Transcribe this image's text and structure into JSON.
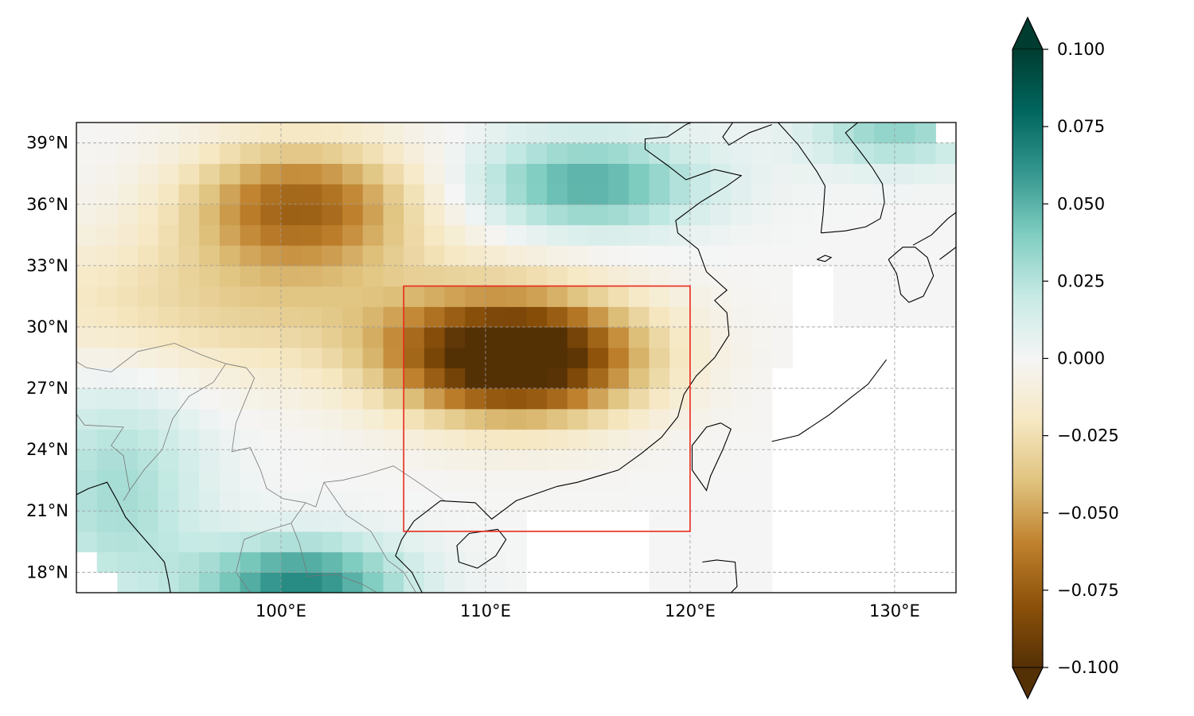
{
  "chart_data": {
    "type": "heatmap",
    "projection": "PlateCarree",
    "title": "",
    "xlabel": "",
    "ylabel": "",
    "xlim": [
      90,
      133
    ],
    "ylim": [
      17,
      40
    ],
    "grid": true,
    "grid_style": "dashed",
    "x_ticks": [
      {
        "value": 100,
        "label": "100°E"
      },
      {
        "value": 110,
        "label": "110°E"
      },
      {
        "value": 120,
        "label": "120°E"
      },
      {
        "value": 130,
        "label": "130°E"
      }
    ],
    "y_ticks": [
      {
        "value": 18,
        "label": "18°N"
      },
      {
        "value": 21,
        "label": "21°N"
      },
      {
        "value": 24,
        "label": "24°N"
      },
      {
        "value": 27,
        "label": "27°N"
      },
      {
        "value": 30,
        "label": "30°N"
      },
      {
        "value": 33,
        "label": "33°N"
      },
      {
        "value": 36,
        "label": "36°N"
      },
      {
        "value": 39,
        "label": "39°N"
      }
    ],
    "grid_resolution_deg": 1,
    "field_features": [
      {
        "kind": "negative_anomaly",
        "lon": 111.5,
        "lat": 28.5,
        "sigma_lon": 4.2,
        "sigma_lat": 2.1,
        "amplitude": -0.12
      },
      {
        "kind": "negative_anomaly",
        "lon": 101,
        "lat": 36,
        "sigma_lon": 4,
        "sigma_lat": 2.2,
        "amplitude": -0.07
      },
      {
        "kind": "negative_band",
        "lon": 98,
        "lat": 31,
        "sigma_lon": 9,
        "sigma_lat": 2.5,
        "amplitude": -0.03
      },
      {
        "kind": "positive_anomaly",
        "lon": 115,
        "lat": 37,
        "sigma_lon": 4,
        "sigma_lat": 1.6,
        "amplitude": 0.052
      },
      {
        "kind": "positive_anomaly",
        "lon": 130,
        "lat": 39.5,
        "sigma_lon": 3,
        "sigma_lat": 1.2,
        "amplitude": 0.035
      },
      {
        "kind": "positive_anomaly",
        "lon": 101,
        "lat": 17.5,
        "sigma_lon": 3.5,
        "sigma_lat": 1.5,
        "amplitude": 0.065
      },
      {
        "kind": "positive_anomaly",
        "lon": 92,
        "lat": 22,
        "sigma_lon": 3,
        "sigma_lat": 4,
        "amplitude": 0.03
      }
    ],
    "missing_regions": [
      {
        "lon": [
          124,
          133
        ],
        "lat": [
          17,
          28
        ]
      },
      {
        "lon": [
          125,
          127
        ],
        "lat": [
          28,
          33
        ]
      },
      {
        "lon": [
          127,
          133
        ],
        "lat": [
          28,
          30
        ]
      },
      {
        "lon": [
          112,
          118
        ],
        "lat": [
          17,
          21
        ]
      },
      {
        "lon": [
          90,
          91
        ],
        "lat": [
          17,
          19
        ]
      },
      {
        "lon": [
          91,
          92
        ],
        "lat": [
          17,
          18
        ]
      },
      {
        "lon": [
          132,
          133
        ],
        "lat": [
          39,
          40
        ]
      }
    ],
    "region_box": {
      "lon": [
        106,
        120
      ],
      "lat": [
        20,
        32
      ],
      "color": "#e8291c"
    },
    "colorbar": {
      "cmap": "BrBG",
      "vmin": -0.1,
      "vmax": 0.1,
      "extend": "both",
      "ticks": [
        {
          "value": 0.1,
          "label": "0.100"
        },
        {
          "value": 0.075,
          "label": "0.075"
        },
        {
          "value": 0.05,
          "label": "0.050"
        },
        {
          "value": 0.025,
          "label": "0.025"
        },
        {
          "value": 0,
          "label": "0.000"
        },
        {
          "value": -0.025,
          "label": "−0.025"
        },
        {
          "value": -0.05,
          "label": "−0.050"
        },
        {
          "value": -0.075,
          "label": "−0.075"
        },
        {
          "value": -0.1,
          "label": "−0.100"
        }
      ],
      "colors": [
        "#543005",
        "#8c510a",
        "#bf812d",
        "#dfc27d",
        "#f6e8c3",
        "#f5f5f5",
        "#c7eae5",
        "#80cdc1",
        "#35978f",
        "#01665e",
        "#003c30"
      ]
    },
    "coastlines": [
      {
        "name": "china_coast",
        "points": [
          [
            106.5,
            20.5
          ],
          [
            107.8,
            21.5
          ],
          [
            109.5,
            21.4
          ],
          [
            110.3,
            20.6
          ],
          [
            111.5,
            21.5
          ],
          [
            113.5,
            22.2
          ],
          [
            114.5,
            22.4
          ],
          [
            116.5,
            23.0
          ],
          [
            117.6,
            23.8
          ],
          [
            118.6,
            24.6
          ],
          [
            119.4,
            25.6
          ],
          [
            119.7,
            26.7
          ],
          [
            120.3,
            27.6
          ],
          [
            121.2,
            28.5
          ],
          [
            121.9,
            29.6
          ],
          [
            121.8,
            30.7
          ],
          [
            121.2,
            31.3
          ],
          [
            121.8,
            31.8
          ],
          [
            120.8,
            32.7
          ],
          [
            120.4,
            33.8
          ],
          [
            119.4,
            34.6
          ],
          [
            119.3,
            35.2
          ],
          [
            120.5,
            36.1
          ],
          [
            121.8,
            36.9
          ],
          [
            122.5,
            37.4
          ],
          [
            121.2,
            37.7
          ],
          [
            119.8,
            37.2
          ],
          [
            118.9,
            37.9
          ],
          [
            117.8,
            38.7
          ],
          [
            117.8,
            39.2
          ],
          [
            118.9,
            39.3
          ],
          [
            119.8,
            39.9
          ],
          [
            121.0,
            40.4
          ]
        ]
      },
      {
        "name": "liaodong",
        "points": [
          [
            122.3,
            40.3
          ],
          [
            121.6,
            39.3
          ],
          [
            121.9,
            38.9
          ],
          [
            122.9,
            39.5
          ],
          [
            124.0,
            39.9
          ]
        ]
      },
      {
        "name": "korea_west",
        "points": [
          [
            124.3,
            40.0
          ],
          [
            125.3,
            38.9
          ],
          [
            126.2,
            37.6
          ],
          [
            126.6,
            36.9
          ],
          [
            126.5,
            35.5
          ],
          [
            126.4,
            34.6
          ]
        ]
      },
      {
        "name": "korea_south_east",
        "points": [
          [
            126.4,
            34.6
          ],
          [
            127.6,
            34.7
          ],
          [
            128.6,
            34.9
          ],
          [
            129.3,
            35.3
          ],
          [
            129.5,
            36.1
          ],
          [
            129.4,
            37.0
          ],
          [
            128.9,
            37.8
          ],
          [
            128.3,
            38.6
          ],
          [
            127.6,
            39.5
          ],
          [
            128.2,
            40.0
          ]
        ]
      },
      {
        "name": "vietnam_coast",
        "points": [
          [
            106.5,
            20.5
          ],
          [
            105.9,
            19.6
          ],
          [
            105.6,
            18.8
          ],
          [
            106.4,
            18.0
          ],
          [
            106.9,
            17.0
          ]
        ]
      },
      {
        "name": "myanmar_coast",
        "points": [
          [
            90.0,
            21.8
          ],
          [
            90.6,
            22.1
          ],
          [
            91.5,
            22.4
          ],
          [
            92.0,
            21.5
          ],
          [
            92.4,
            20.7
          ],
          [
            93.0,
            20.0
          ],
          [
            93.7,
            19.2
          ],
          [
            94.3,
            18.5
          ],
          [
            94.5,
            17.6
          ],
          [
            94.6,
            17.0
          ]
        ]
      },
      {
        "name": "japan_kyushu",
        "points": [
          [
            129.7,
            33.3
          ],
          [
            130.4,
            33.9
          ],
          [
            131.0,
            33.9
          ],
          [
            131.6,
            33.4
          ],
          [
            131.9,
            32.5
          ],
          [
            131.4,
            31.5
          ],
          [
            130.7,
            31.2
          ],
          [
            130.3,
            31.6
          ],
          [
            130.1,
            32.6
          ],
          [
            129.7,
            33.3
          ]
        ]
      },
      {
        "name": "japan_honshu_west",
        "points": [
          [
            130.9,
            34.0
          ],
          [
            131.8,
            34.5
          ],
          [
            132.6,
            35.3
          ],
          [
            133.0,
            35.6
          ]
        ]
      },
      {
        "name": "japan_shikoku_edge",
        "points": [
          [
            132.2,
            33.3
          ],
          [
            132.6,
            33.6
          ],
          [
            133.0,
            33.9
          ]
        ]
      },
      {
        "name": "ryukyu_chain",
        "points": [
          [
            129.6,
            28.4
          ],
          [
            128.7,
            27.2
          ],
          [
            127.8,
            26.5
          ],
          [
            126.8,
            25.7
          ],
          [
            125.3,
            24.7
          ],
          [
            124.0,
            24.4
          ]
        ]
      }
    ],
    "islands": [
      {
        "name": "taiwan",
        "points": [
          [
            121.5,
            25.3
          ],
          [
            122.0,
            25.0
          ],
          [
            121.6,
            24.0
          ],
          [
            121.0,
            22.7
          ],
          [
            120.8,
            22.0
          ],
          [
            120.1,
            23.0
          ],
          [
            120.1,
            24.2
          ],
          [
            120.8,
            25.1
          ],
          [
            121.5,
            25.3
          ]
        ]
      },
      {
        "name": "hainan",
        "points": [
          [
            110.6,
            20.1
          ],
          [
            111.0,
            19.6
          ],
          [
            110.5,
            18.8
          ],
          [
            109.6,
            18.2
          ],
          [
            108.7,
            18.5
          ],
          [
            108.6,
            19.3
          ],
          [
            109.2,
            19.9
          ],
          [
            110.6,
            20.1
          ]
        ]
      },
      {
        "name": "jeju",
        "points": [
          [
            126.2,
            33.3
          ],
          [
            126.6,
            33.5
          ],
          [
            126.9,
            33.4
          ],
          [
            126.6,
            33.2
          ],
          [
            126.2,
            33.3
          ]
        ]
      },
      {
        "name": "luzon_north",
        "points": [
          [
            120.6,
            18.5
          ],
          [
            121.3,
            18.6
          ],
          [
            122.2,
            18.5
          ],
          [
            122.3,
            17.3
          ],
          [
            122.0,
            17.0
          ]
        ]
      }
    ],
    "borders": [
      {
        "name": "china_vietnam_laos",
        "points": [
          [
            108.0,
            21.5
          ],
          [
            106.7,
            22.4
          ],
          [
            105.5,
            23.2
          ],
          [
            104.2,
            22.8
          ],
          [
            103.0,
            22.5
          ],
          [
            102.1,
            22.4
          ],
          [
            101.7,
            21.2
          ],
          [
            101.2,
            21.4
          ],
          [
            100.1,
            21.6
          ],
          [
            99.3,
            22.1
          ],
          [
            99.0,
            23.0
          ],
          [
            98.5,
            24.1
          ],
          [
            97.6,
            23.9
          ],
          [
            97.8,
            25.3
          ],
          [
            98.7,
            27.5
          ],
          [
            98.3,
            28.0
          ],
          [
            97.3,
            28.2
          ],
          [
            96.2,
            28.6
          ],
          [
            94.8,
            29.2
          ],
          [
            93.0,
            28.8
          ],
          [
            91.7,
            27.8
          ],
          [
            90.5,
            28.0
          ],
          [
            90.0,
            28.3
          ]
        ]
      },
      {
        "name": "laos_vietnam",
        "points": [
          [
            102.1,
            22.4
          ],
          [
            103.2,
            20.8
          ],
          [
            104.4,
            20.0
          ],
          [
            105.2,
            18.6
          ],
          [
            106.0,
            18.0
          ],
          [
            106.6,
            17.0
          ]
        ]
      },
      {
        "name": "myanmar_thailand_laos",
        "points": [
          [
            101.2,
            21.4
          ],
          [
            100.5,
            20.4
          ],
          [
            99.2,
            20.0
          ],
          [
            98.2,
            19.6
          ],
          [
            97.8,
            18.0
          ],
          [
            98.5,
            17.0
          ]
        ]
      },
      {
        "name": "thailand_laos",
        "points": [
          [
            100.5,
            20.4
          ],
          [
            100.9,
            19.4
          ],
          [
            101.3,
            17.8
          ],
          [
            102.7,
            17.9
          ],
          [
            104.0,
            17.4
          ],
          [
            104.7,
            17.0
          ]
        ]
      },
      {
        "name": "india_myanmar",
        "points": [
          [
            97.3,
            28.2
          ],
          [
            96.7,
            27.3
          ],
          [
            95.5,
            26.6
          ],
          [
            94.7,
            25.5
          ],
          [
            94.2,
            24.0
          ],
          [
            93.3,
            23.0
          ],
          [
            92.6,
            22.0
          ],
          [
            92.3,
            21.5
          ]
        ]
      },
      {
        "name": "bangladesh",
        "points": [
          [
            92.6,
            22.0
          ],
          [
            92.3,
            23.7
          ],
          [
            91.7,
            24.2
          ],
          [
            92.3,
            25.1
          ],
          [
            90.4,
            25.2
          ],
          [
            89.8,
            26.0
          ]
        ]
      },
      {
        "name": "china_nkorea",
        "points": [
          [
            124.3,
            40.0
          ],
          [
            125.6,
            40.7
          ]
        ]
      }
    ]
  }
}
